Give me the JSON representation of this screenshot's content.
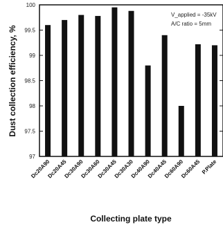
{
  "chart_data": {
    "type": "bar",
    "title": "",
    "xlabel": "Collecting plate type",
    "ylabel": "Dust collection efficiency, %",
    "categories": [
      "Dc20A90",
      "Dc20A45",
      "Dc30A90",
      "Dc30A60",
      "Dc30A45",
      "Dc30A30",
      "Dc40A90",
      "Dc40A45",
      "Dc60A90",
      "Dc60A45",
      "P.Plate"
    ],
    "values": [
      99.6,
      99.7,
      99.8,
      99.78,
      99.95,
      99.88,
      98.8,
      99.4,
      98.0,
      99.22,
      99.2
    ],
    "ylim": [
      97,
      100
    ],
    "yticks": [
      "97",
      "97.5",
      "98",
      "98.5",
      "99",
      "99.5",
      "100"
    ],
    "ytick_values": [
      97,
      97.5,
      98,
      98.5,
      99,
      99.5,
      100
    ],
    "grid": false,
    "bar_color": "#111111",
    "annotations": [
      "V_applied = -35kV",
      "A/C ratio = 5mm"
    ]
  }
}
